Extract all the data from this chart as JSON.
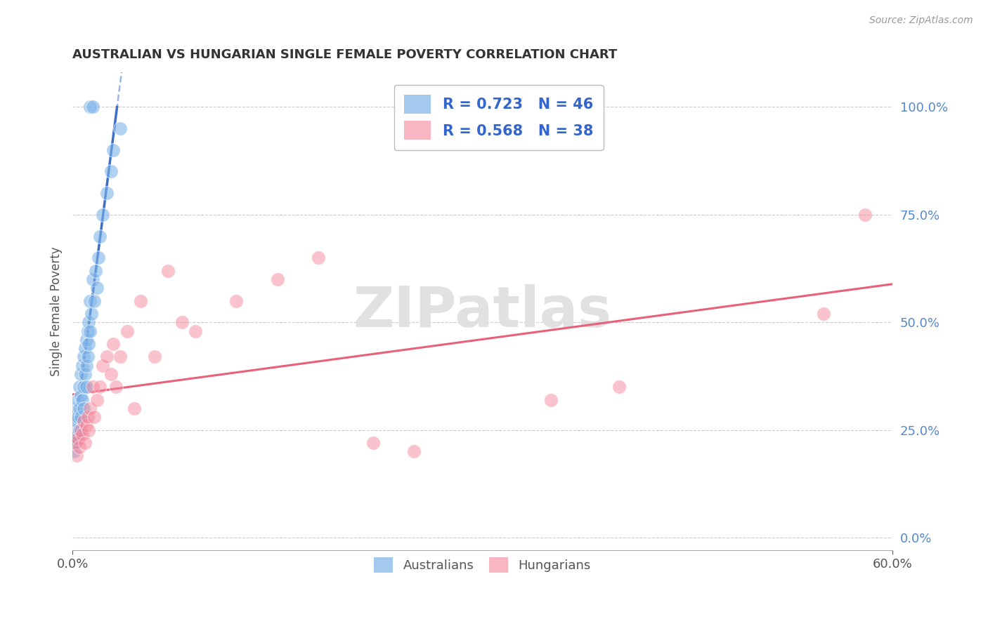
{
  "title": "AUSTRALIAN VS HUNGARIAN SINGLE FEMALE POVERTY CORRELATION CHART",
  "source": "Source: ZipAtlas.com",
  "ylabel": "Single Female Poverty",
  "watermark": "ZIPatlas",
  "legend_blue_r": "R = 0.723",
  "legend_blue_n": "N = 46",
  "legend_pink_r": "R = 0.568",
  "legend_pink_n": "N = 38",
  "ytick_labels": [
    "0.0%",
    "25.0%",
    "50.0%",
    "75.0%",
    "100.0%"
  ],
  "ytick_values": [
    0.0,
    0.25,
    0.5,
    0.75,
    1.0
  ],
  "xlim": [
    0.0,
    0.6
  ],
  "ylim": [
    -0.03,
    1.08
  ],
  "blue_color": "#7EB3E8",
  "pink_color": "#F4869A",
  "blue_line_color": "#3B6FC9",
  "pink_line_color": "#E8607A",
  "title_color": "#333333",
  "source_color": "#999999",
  "grid_color": "#CCCCCC",
  "blue_scatter_x": [
    0.001,
    0.001,
    0.002,
    0.002,
    0.002,
    0.003,
    0.003,
    0.004,
    0.004,
    0.004,
    0.005,
    0.005,
    0.005,
    0.006,
    0.006,
    0.006,
    0.007,
    0.007,
    0.008,
    0.008,
    0.008,
    0.009,
    0.009,
    0.01,
    0.01,
    0.01,
    0.011,
    0.011,
    0.012,
    0.012,
    0.013,
    0.013,
    0.014,
    0.015,
    0.016,
    0.017,
    0.018,
    0.019,
    0.02,
    0.022,
    0.025,
    0.028,
    0.03,
    0.035,
    0.013,
    0.015
  ],
  "blue_scatter_y": [
    0.2,
    0.23,
    0.22,
    0.25,
    0.28,
    0.27,
    0.3,
    0.24,
    0.28,
    0.32,
    0.25,
    0.3,
    0.35,
    0.28,
    0.33,
    0.38,
    0.32,
    0.4,
    0.3,
    0.35,
    0.42,
    0.38,
    0.44,
    0.35,
    0.4,
    0.46,
    0.42,
    0.48,
    0.45,
    0.5,
    0.48,
    0.55,
    0.52,
    0.6,
    0.55,
    0.62,
    0.58,
    0.65,
    0.7,
    0.75,
    0.8,
    0.85,
    0.9,
    0.95,
    1.0,
    1.0
  ],
  "pink_scatter_x": [
    0.002,
    0.003,
    0.004,
    0.005,
    0.006,
    0.007,
    0.008,
    0.009,
    0.01,
    0.011,
    0.012,
    0.013,
    0.015,
    0.016,
    0.018,
    0.02,
    0.022,
    0.025,
    0.028,
    0.03,
    0.032,
    0.035,
    0.04,
    0.045,
    0.05,
    0.06,
    0.07,
    0.08,
    0.09,
    0.12,
    0.15,
    0.18,
    0.22,
    0.25,
    0.35,
    0.4,
    0.55,
    0.58
  ],
  "pink_scatter_y": [
    0.22,
    0.19,
    0.23,
    0.21,
    0.25,
    0.24,
    0.27,
    0.22,
    0.26,
    0.28,
    0.25,
    0.3,
    0.35,
    0.28,
    0.32,
    0.35,
    0.4,
    0.42,
    0.38,
    0.45,
    0.35,
    0.42,
    0.48,
    0.3,
    0.55,
    0.42,
    0.62,
    0.5,
    0.48,
    0.55,
    0.6,
    0.65,
    0.22,
    0.2,
    0.32,
    0.35,
    0.52,
    0.75
  ],
  "background_color": "#FFFFFF"
}
